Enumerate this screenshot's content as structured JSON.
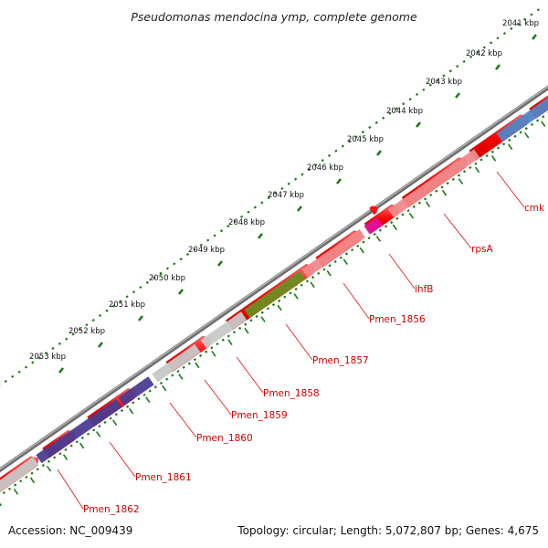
{
  "title": "Pseudomonas mendocina ymp, complete genome",
  "footer": {
    "accession": "Accession: NC_009439",
    "topology": "Topology: circular; Length: 5,072,807 bp; Genes: 4,675"
  },
  "scale": {
    "kbp_ticks": [
      "2041 kbp",
      "2042 kbp",
      "2043 kbp",
      "2044 kbp",
      "2045 kbp",
      "2046 kbp",
      "2047 kbp",
      "2048 kbp",
      "2049 kbp",
      "2050 kbp",
      "2051 kbp",
      "2052 kbp",
      "2053 kbp"
    ]
  },
  "colors": {
    "forward_cds": "#ff0000",
    "backbone": "#888888",
    "dotted_scale": "#1a7a1a",
    "label_text": "#cc0000"
  },
  "genes": [
    {
      "name": "cmk",
      "color": "#4f86c6"
    },
    {
      "name": "rpsA",
      "color": "#f08a8a"
    },
    {
      "name": "ihfB",
      "color": "#e0109a"
    },
    {
      "name": "Pmen_1856",
      "color": "#f08a8a"
    },
    {
      "name": "Pmen_1857",
      "color": "#6b8e23"
    },
    {
      "name": "Pmen_1858",
      "color": "#c8c8c8"
    },
    {
      "name": "Pmen_1859",
      "color": "#c8c8c8"
    },
    {
      "name": "Pmen_1860",
      "color": "#4b3d8f"
    },
    {
      "name": "Pmen_1861",
      "color": "#4b3d8f"
    },
    {
      "name": "Pmen_1862",
      "color": "#c8c8c8"
    }
  ]
}
